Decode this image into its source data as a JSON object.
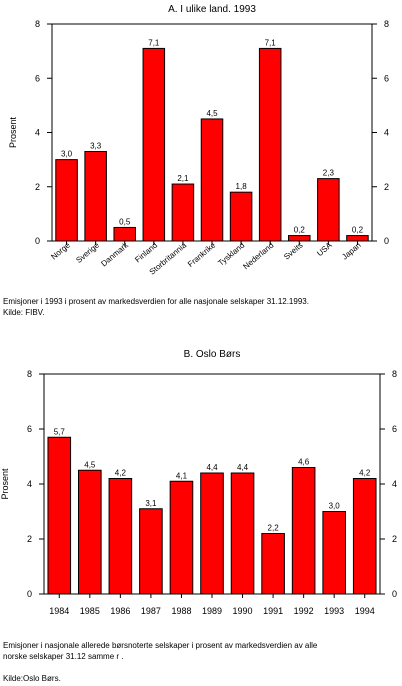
{
  "chart_data": [
    {
      "type": "bar",
      "title": "A. I ulike land. 1993",
      "xlabel": "",
      "ylabel": "Prosent",
      "ylim": [
        0,
        8
      ],
      "yticks": [
        "0",
        "2",
        "4",
        "6",
        "8"
      ],
      "categories": [
        "Norge",
        "Sverige",
        "Danmark",
        "Finland",
        "Storbritannia",
        "Frankrike",
        "Tyskland",
        "Nederland",
        "Sveits",
        "USA",
        "Japan"
      ],
      "values": [
        3.0,
        3.3,
        0.5,
        7.1,
        2.1,
        4.5,
        1.8,
        7.1,
        0.2,
        2.3,
        0.2
      ],
      "value_labels": [
        "3,0",
        "3,3",
        "0,5",
        "7,1",
        "2,1",
        "4,5",
        "1,8",
        "7,1",
        "0,2",
        "2,3",
        "0,2"
      ],
      "bar_color": "#ff0000",
      "category_labels_rotated": true,
      "caption": [
        "Emisjoner i 1993 i prosent av markedsverdien for alle nasjonale selskaper 31.12.1993.",
        "Kilde: FIBV."
      ]
    },
    {
      "type": "bar",
      "title": "B. Oslo Børs",
      "xlabel": "",
      "ylabel": "Prosent",
      "ylim": [
        0,
        8
      ],
      "yticks": [
        "0",
        "2",
        "4",
        "6",
        "8"
      ],
      "categories": [
        "1984",
        "1985",
        "1986",
        "1987",
        "1988",
        "1989",
        "1990",
        "1991",
        "1992",
        "1993",
        "1994"
      ],
      "values": [
        5.7,
        4.5,
        4.2,
        3.1,
        4.1,
        4.4,
        4.4,
        2.2,
        4.6,
        3.0,
        4.2
      ],
      "value_labels": [
        "5,7",
        "4,5",
        "4,2",
        "3,1",
        "4,1",
        "4,4",
        "4,4",
        "2,2",
        "4,6",
        "3,0",
        "4,2"
      ],
      "bar_color": "#ff0000",
      "category_labels_rotated": false,
      "caption": [
        "Emisjoner i nasjonale allerede børsnoterte  selskaper i prosent av markedsverdien av alle",
        "norske selskaper 31.12 samme  r  .",
        "",
        "Kilde:Oslo Børs."
      ]
    }
  ]
}
